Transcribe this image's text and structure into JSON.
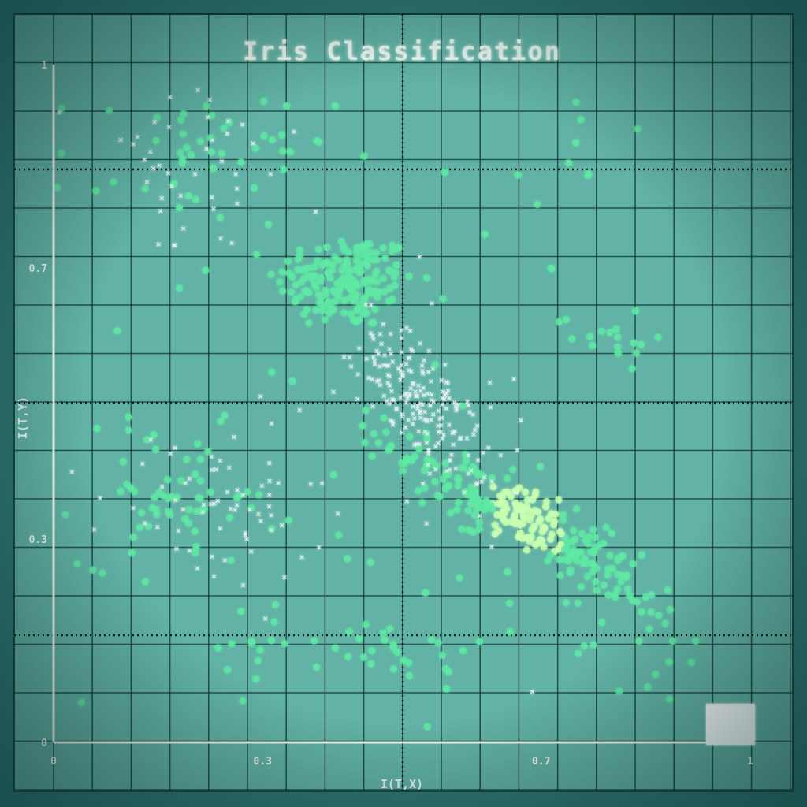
{
  "chart_data": {
    "type": "scatter",
    "title": "Iris Classification",
    "xlabel": "I(T,X)",
    "ylabel": "I(T,Y)",
    "xlim": [
      0,
      1
    ],
    "ylim": [
      0,
      1
    ],
    "x_ticks": [
      "0",
      "0.3",
      "0.7",
      "1"
    ],
    "y_ticks": [
      "0",
      "0.3",
      "0.7",
      "1"
    ],
    "grid": true,
    "colors": {
      "background": "#62b3a6",
      "frame": "#2e7a76",
      "grid": "#10322e",
      "axis": "#e8fbf3",
      "point": "#5fe8a4",
      "point_bright": "#c8ffb0",
      "cross": "#e8f6f4",
      "title": "#e9f7f0"
    },
    "clusters": [
      {
        "marker": "dot",
        "cx": 0.42,
        "cy": 0.68,
        "sx": 0.05,
        "sy": 0.035,
        "n": 180,
        "corr": 0
      },
      {
        "marker": "dot",
        "cx": 0.67,
        "cy": 0.33,
        "sx": 0.09,
        "sy": 0.06,
        "n": 260,
        "corr": -0.9
      },
      {
        "marker": "cross",
        "cx": 0.53,
        "cy": 0.5,
        "sx": 0.045,
        "sy": 0.06,
        "n": 200,
        "corr": -0.7
      },
      {
        "marker": "dot",
        "cx": 0.2,
        "cy": 0.86,
        "sx": 0.1,
        "sy": 0.05,
        "n": 50,
        "corr": 0
      },
      {
        "marker": "cross",
        "cx": 0.2,
        "cy": 0.85,
        "sx": 0.08,
        "sy": 0.07,
        "n": 40,
        "corr": 0
      },
      {
        "marker": "dot",
        "cx": 0.18,
        "cy": 0.36,
        "sx": 0.07,
        "sy": 0.05,
        "n": 60,
        "corr": 0
      },
      {
        "marker": "cross",
        "cx": 0.23,
        "cy": 0.34,
        "sx": 0.08,
        "sy": 0.06,
        "n": 60,
        "corr": 0
      },
      {
        "marker": "dot",
        "cx": 0.8,
        "cy": 0.6,
        "sx": 0.04,
        "sy": 0.02,
        "n": 15,
        "corr": 0
      },
      {
        "marker": "dot",
        "cx": 0.75,
        "cy": 0.88,
        "sx": 0.04,
        "sy": 0.04,
        "n": 8,
        "corr": 0
      },
      {
        "marker": "dot",
        "cx": 0.5,
        "cy": 0.14,
        "sx": 0.05,
        "sy": 0.03,
        "n": 25,
        "corr": 0
      },
      {
        "marker": "dot",
        "cx": 0.3,
        "cy": 0.15,
        "sx": 0.04,
        "sy": 0.04,
        "n": 15,
        "corr": 0
      },
      {
        "marker": "dot",
        "cx": 0.85,
        "cy": 0.14,
        "sx": 0.05,
        "sy": 0.05,
        "n": 20,
        "corr": 0
      },
      {
        "marker": "dot",
        "cx": 0.5,
        "cy": 0.45,
        "sx": 0.25,
        "sy": 0.25,
        "n": 40,
        "corr": 0
      },
      {
        "marker": "cross",
        "cx": 0.4,
        "cy": 0.45,
        "sx": 0.2,
        "sy": 0.2,
        "n": 30,
        "corr": 0
      }
    ]
  }
}
